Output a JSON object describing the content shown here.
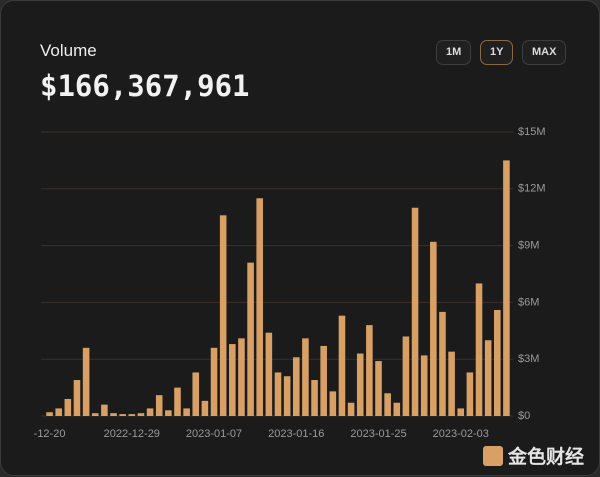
{
  "header": {
    "title": "Volume",
    "total": "$166,367,961",
    "ranges": [
      "1M",
      "1Y",
      "MAX"
    ],
    "selected_range": "1Y"
  },
  "watermark": "金色财经",
  "chart_data": {
    "type": "bar",
    "color": "#d9a066",
    "grid": true,
    "categories": [
      "-12-20",
      null,
      null,
      null,
      null,
      null,
      null,
      null,
      null,
      "2022-12-29",
      null,
      null,
      null,
      null,
      null,
      null,
      null,
      null,
      "2023-01-07",
      null,
      null,
      null,
      null,
      null,
      null,
      null,
      null,
      "2023-01-16",
      null,
      null,
      null,
      null,
      null,
      null,
      null,
      null,
      "2023-01-25",
      null,
      null,
      null,
      null,
      null,
      null,
      null,
      null,
      "2023-02-03",
      null,
      null,
      null,
      null,
      null
    ],
    "values": [
      200000,
      400000,
      900000,
      1900000,
      3600000,
      150000,
      600000,
      150000,
      100000,
      100000,
      150000,
      400000,
      1100000,
      300000,
      1500000,
      400000,
      2300000,
      800000,
      3600000,
      10600000,
      3800000,
      4100000,
      8100000,
      11500000,
      4400000,
      2300000,
      2100000,
      3100000,
      4100000,
      1900000,
      3700000,
      1300000,
      5300000,
      700000,
      3300000,
      4800000,
      2900000,
      1200000,
      700000,
      4200000,
      11000000,
      3200000,
      9200000,
      5500000,
      3400000,
      400000,
      2300000,
      7000000,
      4000000,
      5600000,
      13500000
    ],
    "ylim": [
      0,
      15000000
    ],
    "yticks": [
      {
        "value": 0,
        "label": "$0"
      },
      {
        "value": 3000000,
        "label": "$3M"
      },
      {
        "value": 6000000,
        "label": "$6M"
      },
      {
        "value": 9000000,
        "label": "$9M"
      },
      {
        "value": 12000000,
        "label": "$12M"
      },
      {
        "value": 15000000,
        "label": "$15M"
      }
    ]
  }
}
